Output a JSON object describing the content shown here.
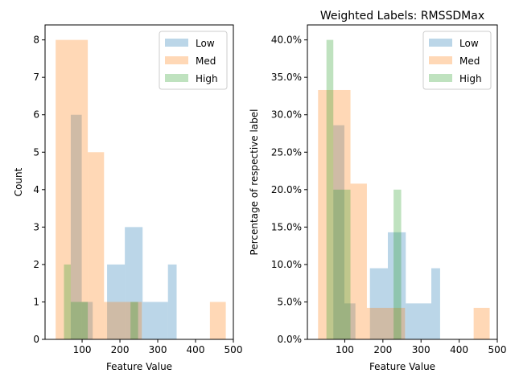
{
  "chart_data": [
    {
      "type": "histogram",
      "title": "",
      "xlabel": "Feature Value",
      "ylabel": "Count",
      "xlim": [
        2,
        500
      ],
      "ylim": [
        0,
        8.4
      ],
      "xticks": [
        100,
        200,
        300,
        400,
        500
      ],
      "yticks": [
        0,
        1,
        2,
        3,
        4,
        5,
        6,
        7,
        8
      ],
      "tick_format": "int",
      "legend": {
        "position": "top-right"
      },
      "series": [
        {
          "name": "Low",
          "color": "#1f77b4",
          "alpha": 0.3,
          "bins": [
            [
              70,
              99,
              6
            ],
            [
              99,
              128,
              1
            ],
            [
              166,
              213,
              2
            ],
            [
              213,
              260,
              3
            ],
            [
              260,
              327,
              1
            ],
            [
              327,
              350,
              2
            ]
          ]
        },
        {
          "name": "Med",
          "color": "#ff7f0e",
          "alpha": 0.3,
          "bins": [
            [
              30,
              67,
              8
            ],
            [
              67,
              115,
              8
            ],
            [
              115,
              158,
              5
            ],
            [
              158,
              258,
              1
            ],
            [
              438,
              480,
              1
            ]
          ]
        },
        {
          "name": "High",
          "color": "#2ca02c",
          "alpha": 0.3,
          "bins": [
            [
              52,
              70,
              2
            ],
            [
              70,
              115,
              1
            ],
            [
              228,
              248,
              1
            ]
          ]
        }
      ]
    },
    {
      "type": "histogram",
      "title": "Weighted Labels: RMSSDMax",
      "xlabel": "Feature Value",
      "ylabel": "Percentage of respective label",
      "xlim": [
        2,
        500
      ],
      "ylim": [
        0,
        0.42
      ],
      "xticks": [
        100,
        200,
        300,
        400,
        500
      ],
      "yticks": [
        0,
        0.05,
        0.1,
        0.15,
        0.2,
        0.25,
        0.3,
        0.35,
        0.4
      ],
      "tick_format": "percent",
      "legend": {
        "position": "top-right"
      },
      "series": [
        {
          "name": "Low",
          "color": "#1f77b4",
          "alpha": 0.3,
          "bins": [
            [
              70,
              99,
              0.286
            ],
            [
              99,
              128,
              0.048
            ],
            [
              166,
              213,
              0.095
            ],
            [
              213,
              260,
              0.143
            ],
            [
              260,
              327,
              0.048
            ],
            [
              327,
              350,
              0.095
            ]
          ]
        },
        {
          "name": "Med",
          "color": "#ff7f0e",
          "alpha": 0.3,
          "bins": [
            [
              30,
              67,
              0.333
            ],
            [
              67,
              115,
              0.333
            ],
            [
              115,
              158,
              0.208
            ],
            [
              158,
              258,
              0.042
            ],
            [
              438,
              480,
              0.042
            ]
          ]
        },
        {
          "name": "High",
          "color": "#2ca02c",
          "alpha": 0.3,
          "bins": [
            [
              52,
              70,
              0.4
            ],
            [
              70,
              115,
              0.2
            ],
            [
              228,
              248,
              0.2
            ]
          ]
        }
      ]
    }
  ]
}
